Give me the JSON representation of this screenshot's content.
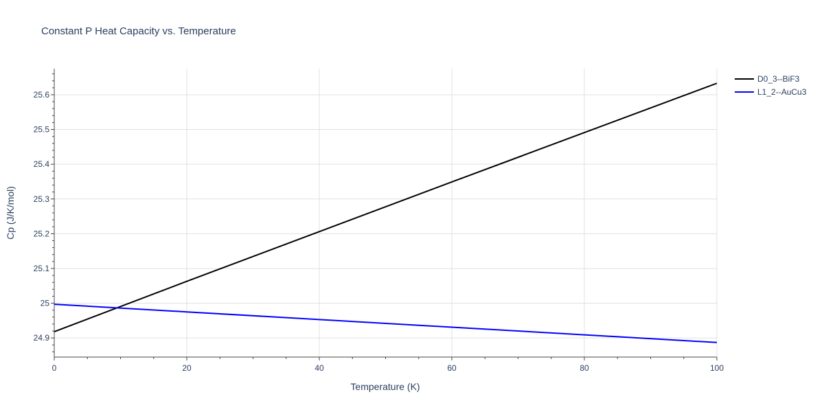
{
  "chart_data": {
    "type": "line",
    "title": "Constant P Heat Capacity vs. Temperature",
    "xlabel": "Temperature (K)",
    "ylabel": "Cp (J/K/mol)",
    "xlim": [
      0,
      100
    ],
    "ylim": [
      24.845,
      25.675
    ],
    "x_ticks": [
      0,
      20,
      40,
      60,
      80,
      100
    ],
    "x_tick_labels": [
      "0",
      "20",
      "40",
      "60",
      "80",
      "100"
    ],
    "y_ticks": [
      24.9,
      25.0,
      25.1,
      25.2,
      25.3,
      25.4,
      25.5,
      25.6
    ],
    "y_tick_labels": [
      "24.9",
      "25",
      "25.1",
      "25.2",
      "25.3",
      "25.4",
      "25.5",
      "25.6"
    ],
    "x_minor_step": 5,
    "y_minor_step": 0.02,
    "grid": true,
    "legend_position": "top-right",
    "series": [
      {
        "name": "D0_3--BiF3",
        "color": "#000000",
        "x": [
          0,
          20,
          40,
          60,
          80,
          100
        ],
        "y": [
          24.918,
          25.063,
          25.206,
          25.349,
          25.491,
          25.633
        ]
      },
      {
        "name": "L1_2--AuCu3",
        "color": "#0000ff",
        "x": [
          0,
          20,
          40,
          60,
          80,
          100
        ],
        "y": [
          24.997,
          24.975,
          24.953,
          24.931,
          24.909,
          24.887
        ]
      }
    ]
  }
}
